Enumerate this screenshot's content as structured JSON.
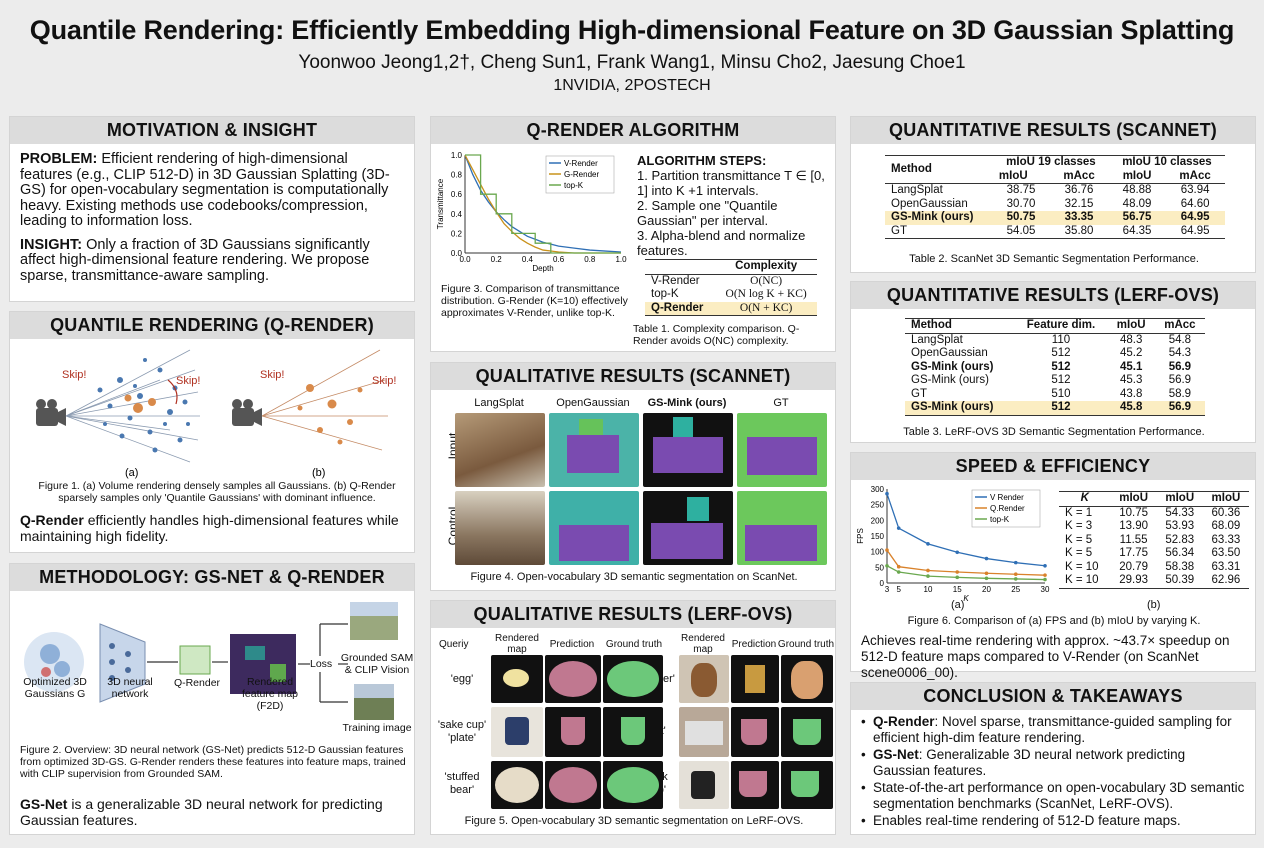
{
  "header": {
    "title": "Quantile Rendering: Efficiently Embedding High-dimensional Feature on 3D Gaussian Splatting",
    "authors": "Yoonwoo Jeong1,2†, Cheng Sun1, Frank Wang1, Minsu Cho2, Jaesung Choe1",
    "affiliations": "1NVIDIA, 2POSTECH"
  },
  "motivation": {
    "title": "MOTIVATION & INSIGHT",
    "problem_label": "PROBLEM:",
    "problem_text": "Efficient rendering of high-dimensional features (e.g., CLIP 512-D) in 3D Gaussian Splatting (3D-GS) for open-vocabulary segmentation is computationally heavy. Existing methods use codebooks/compression, leading to information loss.",
    "insight_label": "INSIGHT:",
    "insight_text": "Only a fraction of 3D Gaussians significantly affect high-dimensional feature rendering. We propose sparse, transmittance-aware sampling."
  },
  "qrender": {
    "title": "QUANTILE RENDERING (Q-RENDER)",
    "skip": "Skip!",
    "label_a": "(a)",
    "label_b": "(b)",
    "caption": "Figure 1. (a) Volume rendering densely samples all Gaussians. (b) Q-Render sparsely samples only 'Quantile Gaussians' with dominant influence.",
    "bold": "Q-Render",
    "text": "efficiently handles high-dimensional features while maintaining high fidelity."
  },
  "methodology": {
    "title": "METHODOLOGY: GS-NET & Q-RENDER",
    "labels": {
      "gaussians": "Optimized 3D Gaussians G",
      "network": "3D neural network",
      "qrender": "Q-Render",
      "featuremap": "Rendered feature map (F2D)",
      "loss": "Loss",
      "sam": "Grounded SAM & CLIP Vision",
      "training": "Training image"
    },
    "caption": "Figure 2. Overview: 3D neural network (GS-Net) predicts 512-D Gaussian features from optimized 3D-GS. G-Render renders these features into feature maps, trained with CLIP supervision from Grounded SAM.",
    "bold": "GS-Net",
    "text": "is a generalizable 3D neural network for predicting Gaussian features."
  },
  "algorithm": {
    "title": "Q-RENDER ALGORITHM",
    "steps_title": "ALGORITHM STEPS:",
    "steps": [
      "1. Partition transmittance T ∈ [0, 1] into K +1 intervals.",
      "2. Sample one \"Quantile Gaussian\" per interval.",
      "3. Alpha-blend and normalize features."
    ],
    "fig3_caption": "Figure 3. Comparison of transmittance distribution. G-Render (K=10) effectively approximates V-Render, unlike top-K.",
    "complexity_header": "Complexity",
    "complexity_rows": [
      {
        "method": "V-Render",
        "value": "O(NC)"
      },
      {
        "method": "top-K",
        "value": "O(N log K + KC)"
      },
      {
        "method": "Q-Render",
        "value": "O(N + KC)"
      }
    ],
    "table_caption": "Table 1. Complexity comparison. Q-Render avoids O(NC) complexity."
  },
  "chart_data": [
    {
      "type": "line",
      "xlabel": "Depth",
      "ylabel": "Transmittance",
      "xlim": [
        0,
        1
      ],
      "ylim": [
        0,
        1
      ],
      "xticks": [
        "0.0",
        "0.2",
        "0.4",
        "0.6",
        "0.8",
        "1.0"
      ],
      "yticks": [
        "0.0",
        "0.2",
        "0.4",
        "0.6",
        "0.8",
        "1.0"
      ],
      "legend_position": "top-right",
      "series": [
        {
          "name": "V-Render",
          "color": "#2f6fb5",
          "x": [
            0,
            0.05,
            0.1,
            0.15,
            0.2,
            0.25,
            0.3,
            0.35,
            0.4,
            0.45,
            0.5,
            0.55,
            0.6,
            0.7,
            0.8,
            0.9,
            1.0
          ],
          "y": [
            1.0,
            0.8,
            0.64,
            0.52,
            0.42,
            0.34,
            0.27,
            0.22,
            0.17,
            0.14,
            0.11,
            0.09,
            0.07,
            0.05,
            0.03,
            0.02,
            0.01
          ]
        },
        {
          "name": "G-Render",
          "color": "#c9921b",
          "x": [
            0,
            0.05,
            0.1,
            0.15,
            0.2,
            0.25,
            0.3,
            0.35,
            0.4,
            0.45,
            0.5,
            0.55,
            0.6,
            0.7,
            0.8,
            0.9,
            1.0
          ],
          "y": [
            1.0,
            0.85,
            0.7,
            0.55,
            0.42,
            0.3,
            0.22,
            0.15,
            0.1,
            0.06,
            0.03,
            0.02,
            0.01,
            0,
            0,
            0,
            0
          ]
        },
        {
          "name": "top-K",
          "color": "#6aa84f",
          "x": [
            0,
            0.1,
            0.1,
            0.2,
            0.2,
            0.3,
            0.3,
            0.35,
            0.35,
            0.45,
            0.45,
            0.55,
            0.55,
            1.0
          ],
          "y": [
            1.0,
            1.0,
            0.6,
            0.6,
            0.4,
            0.4,
            0.2,
            0.2,
            0.2,
            0.2,
            0.1,
            0.1,
            0,
            0
          ]
        }
      ]
    },
    {
      "type": "line",
      "xlabel": "K",
      "ylabel": "FPS",
      "xlim": [
        3,
        30
      ],
      "ylim": [
        0,
        300
      ],
      "xticks": [
        "3",
        "5",
        "10",
        "15",
        "20",
        "25",
        "30"
      ],
      "yticks": [
        "0",
        "50",
        "100",
        "150",
        "200",
        "250",
        "300"
      ],
      "legend_position": "top-right",
      "series": [
        {
          "name": "V Render",
          "color": "#2f6fb5",
          "x": [
            3,
            5,
            10,
            15,
            20,
            25,
            30
          ],
          "y": [
            285,
            175,
            125,
            98,
            78,
            65,
            55
          ]
        },
        {
          "name": "Q.Render",
          "color": "#d9822b",
          "x": [
            3,
            5,
            10,
            15,
            20,
            25,
            30
          ],
          "y": [
            105,
            52,
            40,
            35,
            31,
            28,
            25
          ]
        },
        {
          "name": "top-K",
          "color": "#6aa84f",
          "x": [
            3,
            5,
            10,
            15,
            20,
            25,
            30
          ],
          "y": [
            55,
            35,
            22,
            18,
            15,
            13,
            11
          ]
        }
      ]
    }
  ],
  "qual_scannet": {
    "title": "QUALITATIVE RESULTS (SCANNET)",
    "columns": [
      "LangSplat",
      "OpenGaussian",
      "GS-Mink (ours)",
      "GT"
    ],
    "rows": [
      "Input",
      "Control"
    ],
    "caption": "Figure 4. Open-vocabulary 3D semantic segmentation on ScanNet."
  },
  "qual_lerf": {
    "title": "QUALITATIVE RESULTS (LERF-OVS)",
    "headers": [
      "Queriy",
      "Rendered map",
      "Prediction",
      "Ground truth"
    ],
    "headers_right": [
      "Rendered map",
      "Prediction",
      "Ground truth"
    ],
    "queries_left": [
      "'egg'",
      "'sake cup' 'plate'",
      "'stuffed bear'"
    ],
    "queries_right": [
      "'toaster'",
      "'pot'",
      "'dark cup'"
    ],
    "caption": "Figure 5. Open-vocabulary 3D semantic segmentation on LeRF-OVS."
  },
  "quant_scannet": {
    "title": "QUANTITATIVE RESULTS (SCANNET)",
    "head_method": "Method",
    "head_19": "mIoU 19 classes",
    "head_10": "mIoU 10 classes",
    "sub": [
      "mIoU",
      "mAcc",
      "mIoU",
      "mAcc"
    ],
    "rows": [
      [
        "LangSplat",
        "38.75",
        "36.76",
        "48.88",
        "63.94"
      ],
      [
        "OpenGaussian",
        "30.70",
        "32.15",
        "48.09",
        "64.60"
      ],
      [
        "GS-Mink (ours)",
        "50.75",
        "33.35",
        "56.75",
        "64.95"
      ],
      [
        "GT",
        "54.05",
        "35.80",
        "64.35",
        "64.95"
      ]
    ],
    "caption": "Table 2. ScanNet 3D Semantic Segmentation Performance."
  },
  "quant_lerf": {
    "title": "QUANTITATIVE RESULTS (LERF-OVS)",
    "headers": [
      "Method",
      "Feature dim.",
      "mIoU",
      "mAcc"
    ],
    "rows": [
      [
        "LangSplat",
        "110",
        "48.3",
        "54.8"
      ],
      [
        "OpenGaussian",
        "512",
        "45.2",
        "54.3"
      ],
      [
        "GS-Mink (ours)",
        "512",
        "45.1",
        "56.9"
      ],
      [
        "GS-Mink (ours)",
        "512",
        "45.3",
        "56.9"
      ],
      [
        "GT",
        "510",
        "43.8",
        "58.9"
      ],
      [
        "GS-Mink (ours)",
        "512",
        "45.8",
        "56.9"
      ]
    ],
    "caption": "Table 3. LeRF-OVS 3D Semantic Segmentation Performance."
  },
  "speed": {
    "title": "SPEED & EFFICIENCY",
    "table_headers": [
      "K",
      "mIoU",
      "mIoU",
      "mIoU"
    ],
    "table_rows": [
      [
        "K = 1",
        "10.75",
        "54.33",
        "60.36"
      ],
      [
        "K = 3",
        "13.90",
        "53.93",
        "68.09"
      ],
      [
        "K = 5",
        "11.55",
        "52.83",
        "63.33"
      ],
      [
        "K = 5",
        "17.75",
        "56.34",
        "63.50"
      ],
      [
        "K = 10",
        "20.79",
        "58.38",
        "63.31"
      ],
      [
        "K = 10",
        "29.93",
        "50.39",
        "62.96"
      ]
    ],
    "label_a": "(a)",
    "label_b": "(b)",
    "caption": "Figure 6. Comparison of (a) FPS and (b) mIoU by varying K.",
    "text": "Achieves real-time rendering with approx. ~43.7× speedup on 512-D feature maps compared to V-Render (on ScanNet scene0006_00)."
  },
  "conclusion": {
    "title": "CONCLUSION & TAKEAWAYS",
    "items": [
      {
        "bold": "Q-Render",
        "text": ": Novel sparse, transmittance-guided sampling for efficient high-dim feature rendering."
      },
      {
        "bold": "GS-Net",
        "text": ": Generalizable 3D neural network predicting Gaussian features."
      },
      {
        "bold": "",
        "text": "State-of-the-art performance on open-vocabulary 3D semantic segmentation benchmarks (ScanNet, LeRF-OVS)."
      },
      {
        "bold": "",
        "text": "Enables real-time rendering of 512-D feature maps."
      }
    ]
  }
}
